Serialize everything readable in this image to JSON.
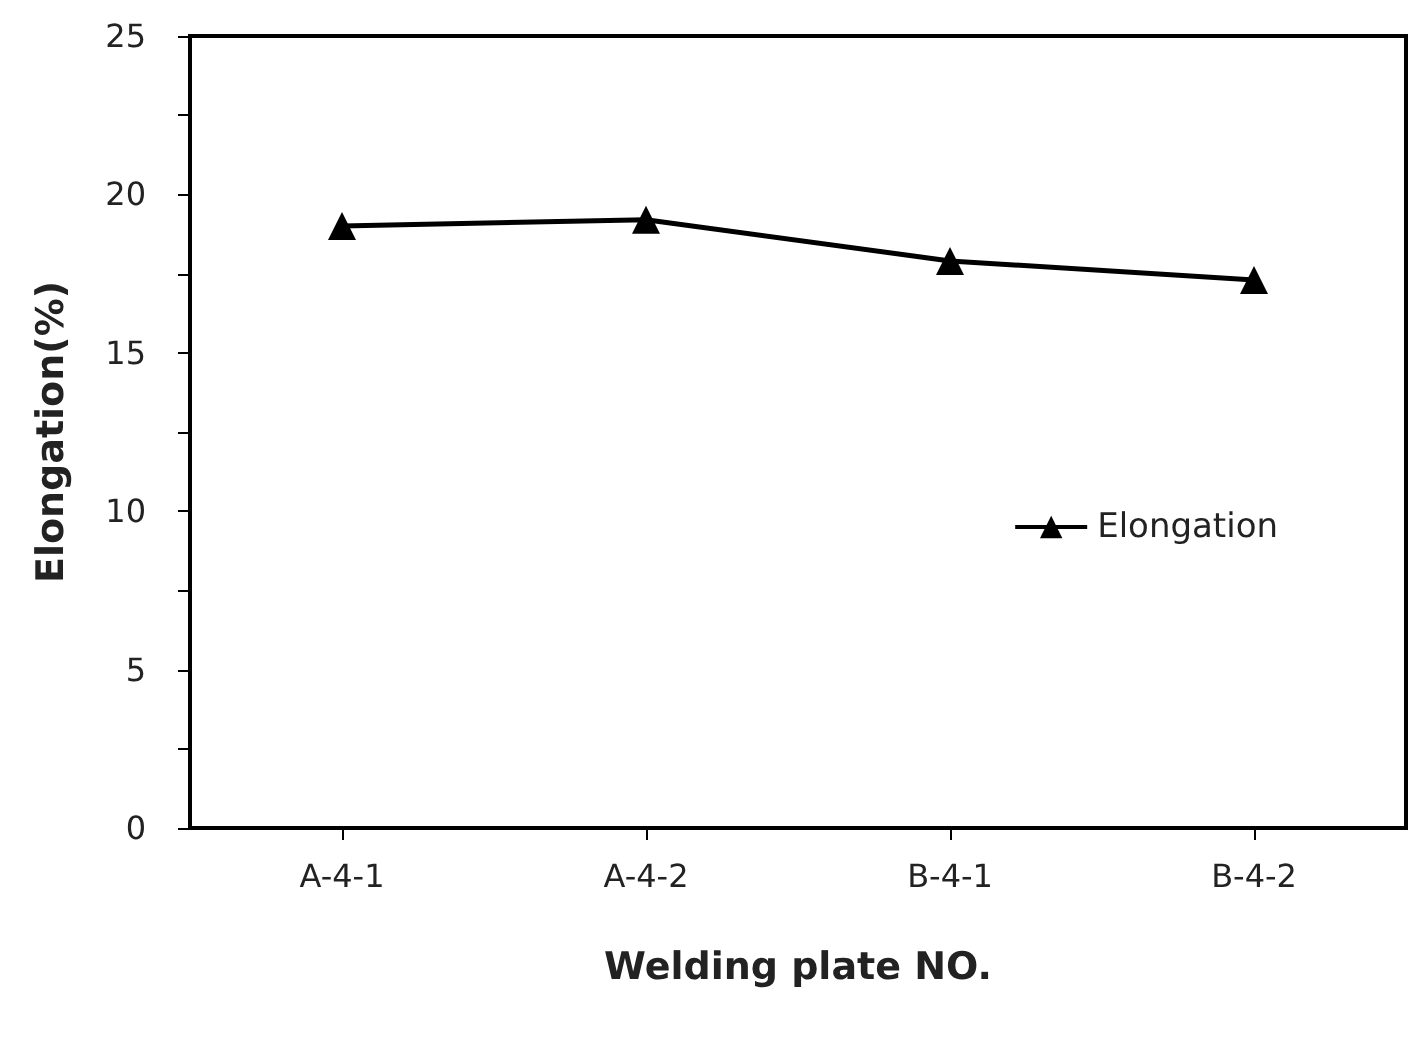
{
  "chart_data": {
    "type": "line",
    "xlabel": "Welding plate NO.",
    "ylabel": "Elongation(%)",
    "categories": [
      "A-4-1",
      "A-4-2",
      "B-4-1",
      "B-4-2"
    ],
    "series": [
      {
        "name": "Elongation",
        "color": "#000000",
        "values": [
          19.0,
          19.2,
          17.9,
          17.3
        ]
      }
    ],
    "ylim": [
      0,
      25
    ],
    "yticks": [
      0,
      {
        "value": 2.5,
        "label": null
      },
      5,
      {
        "value": 7.5,
        "label": null
      },
      10,
      {
        "value": 12.5,
        "label": null
      },
      15,
      {
        "value": 17.5,
        "label": null
      },
      20,
      {
        "value": 22.5,
        "label": null
      },
      25
    ],
    "marker": "triangle",
    "line_style": "solid",
    "legend": "right",
    "grid": false
  }
}
